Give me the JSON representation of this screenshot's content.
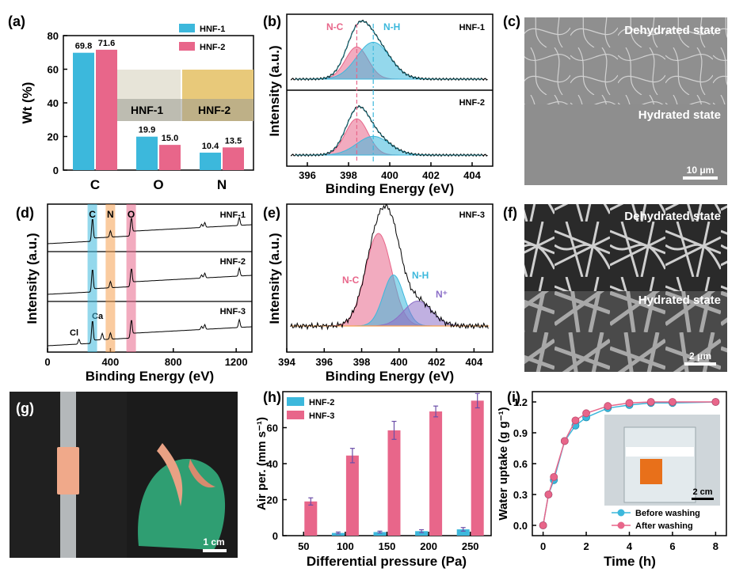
{
  "panels": {
    "a": {
      "label": "(a)"
    },
    "b": {
      "label": "(b)"
    },
    "c": {
      "label": "(c)",
      "top_text": "Dehydrated state",
      "bottom_text": "Hydrated state",
      "scale": "10 μm"
    },
    "d": {
      "label": "(d)"
    },
    "e": {
      "label": "(e)"
    },
    "f": {
      "label": "(f)",
      "top_text": "Dehydrated state",
      "bottom_text": "Hydrated state",
      "scale": "2 μm"
    },
    "g": {
      "label": "(g)",
      "scale": "1 cm"
    },
    "h": {
      "label": "(h)"
    },
    "i": {
      "label": "(i)",
      "inset_scale": "2 cm"
    }
  },
  "photo_labels": {
    "hnf1": "HNF-1",
    "hnf2": "HNF-2"
  },
  "colors": {
    "blue": "#3cb8dc",
    "pink": "#e8668a",
    "orange": "#f5a050",
    "purple": "#8c6fc8"
  },
  "chart_data": [
    {
      "id": "a",
      "type": "bar",
      "categories": [
        "C",
        "O",
        "N"
      ],
      "series": [
        {
          "name": "HNF-1",
          "values": [
            69.8,
            19.9,
            10.4
          ]
        },
        {
          "name": "HNF-2",
          "values": [
            71.6,
            15.0,
            13.5
          ]
        }
      ],
      "value_labels": [
        [
          "69.8",
          "19.9",
          "10.4"
        ],
        [
          "71.6",
          "15.0",
          "13.5"
        ]
      ],
      "ylabel": "Wt (%)",
      "ylim": [
        0,
        80
      ],
      "yticks": [
        0,
        20,
        40,
        60,
        80
      ],
      "legend": "top-right"
    },
    {
      "id": "b",
      "type": "line",
      "xlabel": "Binding Energy (eV)",
      "ylabel": "Intensity (a.u.)",
      "xlim": [
        395,
        405
      ],
      "xticks": [
        396,
        398,
        400,
        402,
        404
      ],
      "subplots": [
        {
          "name": "HNF-1",
          "peaks": [
            {
              "label": "N-C",
              "center": 398.4,
              "height": 0.55
            },
            {
              "label": "N-H",
              "center": 399.2,
              "height": 0.63
            }
          ]
        },
        {
          "name": "HNF-2",
          "peaks": [
            {
              "label": "N-C",
              "center": 398.4,
              "height": 0.62
            },
            {
              "label": "N-H",
              "center": 399.2,
              "height": 0.32
            }
          ]
        }
      ],
      "reference_lines": [
        398.4,
        399.2
      ]
    },
    {
      "id": "d",
      "type": "line",
      "xlabel": "Binding Energy (eV)",
      "ylabel": "Intensity (a.u.)",
      "xlim": [
        0,
        1300
      ],
      "xticks": [
        0,
        400,
        800,
        1200
      ],
      "series": [
        {
          "name": "HNF-1"
        },
        {
          "name": "HNF-2"
        },
        {
          "name": "HNF-3"
        }
      ],
      "bands": [
        {
          "label": "C",
          "center": 285
        },
        {
          "label": "N",
          "center": 400
        },
        {
          "label": "O",
          "center": 532
        }
      ],
      "annotations": [
        "Cl",
        "Ca"
      ]
    },
    {
      "id": "e",
      "type": "line",
      "title": "HNF-3",
      "xlabel": "Binding Energy (eV)",
      "ylabel": "Intensity (a.u.)",
      "xlim": [
        394,
        405
      ],
      "xticks": [
        394,
        396,
        398,
        400,
        402,
        404
      ],
      "peaks": [
        {
          "label": "N-C",
          "center": 398.9,
          "height": 0.78
        },
        {
          "label": "N-H",
          "center": 399.7,
          "height": 0.43
        },
        {
          "label": "N⁺",
          "center": 401.0,
          "height": 0.21
        }
      ]
    },
    {
      "id": "h",
      "type": "bar",
      "categories": [
        "50",
        "100",
        "150",
        "200",
        "250"
      ],
      "series": [
        {
          "name": "HNF-2",
          "values": [
            0,
            1.5,
            2.0,
            2.5,
            3.5
          ],
          "errors": [
            0,
            0.5,
            0.5,
            0.8,
            1.0
          ]
        },
        {
          "name": "HNF-3",
          "values": [
            19,
            44.5,
            58.5,
            69,
            75
          ],
          "errors": [
            2,
            4,
            5,
            3,
            4
          ]
        }
      ],
      "xlabel": "Differential pressure (Pa)",
      "ylabel": "Air per. (mm s⁻¹)",
      "ylim": [
        0,
        80
      ],
      "yticks": [
        0,
        20,
        40,
        60
      ],
      "legend": "top-left"
    },
    {
      "id": "i",
      "type": "line",
      "x": [
        0,
        0.25,
        0.5,
        1,
        1.5,
        2,
        3,
        4,
        5,
        6,
        8
      ],
      "series": [
        {
          "name": "Before washing",
          "values": [
            0,
            0.3,
            0.44,
            0.82,
            0.97,
            1.05,
            1.14,
            1.17,
            1.19,
            1.19,
            1.2
          ]
        },
        {
          "name": "After washing",
          "values": [
            0,
            0.3,
            0.47,
            0.82,
            1.02,
            1.09,
            1.16,
            1.19,
            1.2,
            1.2,
            1.2
          ]
        }
      ],
      "xlabel": "Time (h)",
      "ylabel": "Water uptake (g g⁻¹)",
      "xlim": [
        -0.5,
        8.5
      ],
      "xticks": [
        0,
        2,
        4,
        6,
        8
      ],
      "ylim": [
        -0.1,
        1.3
      ],
      "yticks": [
        0.0,
        0.3,
        0.6,
        0.9,
        1.2
      ],
      "legend": "bottom-right"
    }
  ]
}
